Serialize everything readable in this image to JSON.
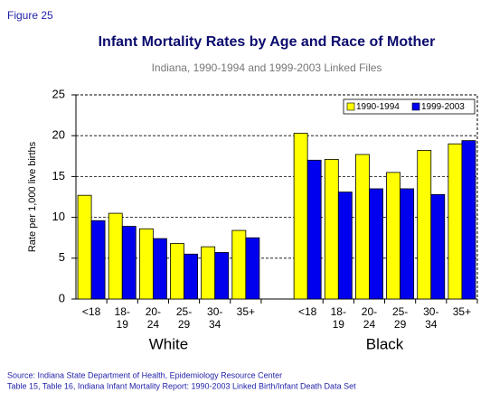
{
  "figure_label": "Figure 25",
  "chart_data": {
    "type": "bar",
    "title": "Infant Mortality Rates by Age and Race of Mother",
    "subtitle": "Indiana, 1990-1994 and 1999-2003 Linked Files",
    "y_label": "Rate per 1,000 live births",
    "categories": [
      "<18",
      "18-19",
      "20-24",
      "25-29",
      "30-34",
      "35+",
      null,
      "<18",
      "18-19",
      "20-24",
      "25-29",
      "30-34",
      "35+"
    ],
    "groups": [
      "White",
      "Black"
    ],
    "series": [
      {
        "name": "1990-1994",
        "color": "#ffff00",
        "values": [
          12.7,
          10.5,
          8.6,
          6.8,
          6.4,
          8.4,
          null,
          20.3,
          17.1,
          17.7,
          15.5,
          18.2,
          19.0
        ]
      },
      {
        "name": "1999-2003",
        "color": "#0000ee",
        "values": [
          9.6,
          8.9,
          7.4,
          5.5,
          5.7,
          7.5,
          null,
          17.0,
          13.1,
          13.5,
          13.5,
          12.8,
          19.4
        ]
      }
    ],
    "ylim": [
      0,
      25
    ],
    "yticks": [
      0,
      5,
      10,
      15,
      20,
      25
    ],
    "grid": true,
    "legend": "top-right"
  },
  "source": [
    "Source: Indiana State Department of Health, Epidemiology Resource Center",
    "Table 15, Table 16, Indiana Infant Mortality Report: 1990-2003 Linked Birth/Infant Death Data Set"
  ]
}
